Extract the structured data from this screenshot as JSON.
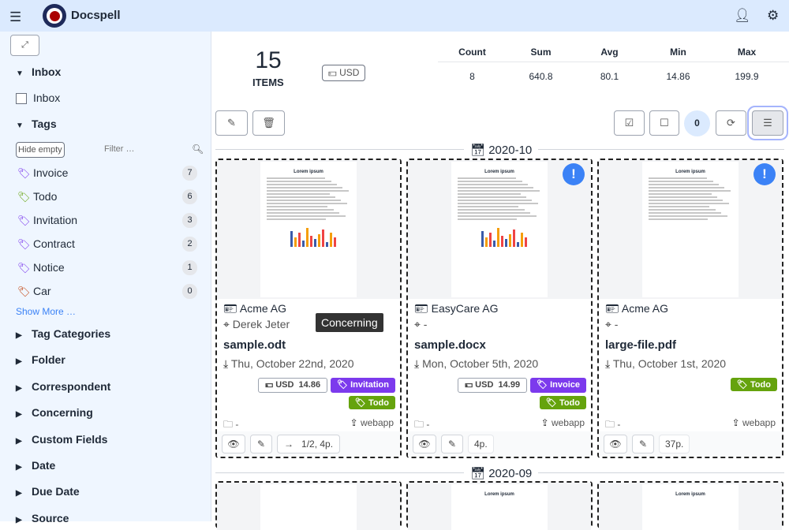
{
  "header": {
    "title": "Docspell",
    "menu_icon": "hamburger-icon",
    "user_icon": "user-icon",
    "settings_icon": "cogs-icon"
  },
  "sidebar": {
    "inbox_section": "Inbox",
    "inbox_checkbox": "Inbox",
    "tags_section": "Tags",
    "hide_empty": "Hide empty",
    "filter_placeholder": "Filter …",
    "tags": [
      {
        "label": "Invoice",
        "count": "7",
        "color": "#7c3aed"
      },
      {
        "label": "Todo",
        "count": "6",
        "color": "#65a30d"
      },
      {
        "label": "Invitation",
        "count": "3",
        "color": "#7c3aed"
      },
      {
        "label": "Contract",
        "count": "2",
        "color": "#7c3aed"
      },
      {
        "label": "Notice",
        "count": "1",
        "color": "#7c3aed"
      },
      {
        "label": "Car",
        "count": "0",
        "color": "#c2410c"
      }
    ],
    "show_more": "Show More …",
    "sections": [
      "Tag Categories",
      "Folder",
      "Correspondent",
      "Concerning",
      "Custom Fields",
      "Date",
      "Due Date",
      "Source"
    ]
  },
  "summary": {
    "count": "15",
    "items_label": "ITEMS",
    "currency": "USD",
    "headers": [
      "Count",
      "Sum",
      "Avg",
      "Min",
      "Max"
    ],
    "values": [
      "8",
      "640.8",
      "80.1",
      "14.86",
      "199.9"
    ]
  },
  "toolbar": {
    "selected_count": "0"
  },
  "groups": [
    {
      "label": "2020-10"
    },
    {
      "label": "2020-09"
    }
  ],
  "cards": [
    {
      "correspondent": "Acme AG",
      "concerning": "Derek Jeter",
      "name": "sample.odt",
      "date": "Thu, October 22nd, 2020",
      "amount_cur": "USD",
      "amount": "14.86",
      "tags": [
        {
          "label": "Invitation",
          "color": "#7c3aed"
        },
        {
          "label": "Todo",
          "color": "#65a30d"
        }
      ],
      "folder": "-",
      "source": "webapp",
      "pages": "1/2, 4p.",
      "new": false
    },
    {
      "correspondent": "EasyCare AG",
      "concerning": "-",
      "name": "sample.docx",
      "date": "Mon, October 5th, 2020",
      "amount_cur": "USD",
      "amount": "14.99",
      "tags": [
        {
          "label": "Invoice",
          "color": "#7c3aed"
        },
        {
          "label": "Todo",
          "color": "#65a30d"
        }
      ],
      "folder": "-",
      "source": "webapp",
      "pages": "4p.",
      "new": true
    },
    {
      "correspondent": "Acme AG",
      "concerning": "-",
      "name": "large-file.pdf",
      "date": "Thu, October 1st, 2020",
      "tags": [
        {
          "label": "Todo",
          "color": "#65a30d"
        }
      ],
      "folder": "-",
      "source": "webapp",
      "pages": "37p.",
      "new": true
    }
  ],
  "preview_texts": {
    "lorem": "Lorem ipsum"
  },
  "tooltip": "Concerning"
}
